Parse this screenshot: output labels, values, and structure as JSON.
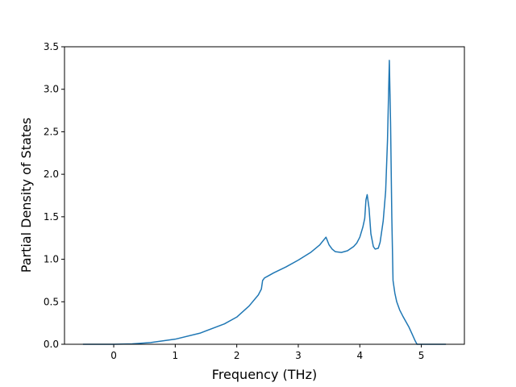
{
  "chart_data": {
    "type": "line",
    "title": "",
    "xlabel": "Frequency (THz)",
    "ylabel": "Partial Density of States",
    "xlim": [
      -0.8,
      5.7
    ],
    "ylim": [
      0,
      3.5
    ],
    "xticks": [
      0,
      1,
      2,
      3,
      4,
      5
    ],
    "yticks": [
      0.0,
      0.5,
      1.0,
      1.5,
      2.0,
      2.5,
      3.0,
      3.5
    ],
    "xtick_labels": [
      "0",
      "1",
      "2",
      "3",
      "4",
      "5"
    ],
    "ytick_labels": [
      "0.0",
      "0.5",
      "1.0",
      "1.5",
      "2.0",
      "2.5",
      "3.0",
      "3.5"
    ],
    "grid": false,
    "legend": false,
    "line_color": "#1f77b4",
    "series": [
      {
        "x": [
          -0.5,
          -0.2,
          0.0,
          0.3,
          0.6,
          1.0,
          1.4,
          1.8,
          2.0,
          2.2,
          2.35,
          2.4,
          2.42,
          2.45,
          2.5,
          2.6,
          2.8,
          3.0,
          3.2,
          3.35,
          3.45,
          3.5,
          3.55,
          3.6,
          3.7,
          3.8,
          3.9,
          3.95,
          4.0,
          4.05,
          4.08,
          4.1,
          4.12,
          4.15,
          4.18,
          4.22,
          4.25,
          4.3,
          4.33,
          4.38,
          4.42,
          4.45,
          4.48,
          4.5,
          4.52,
          4.54,
          4.57,
          4.6,
          4.65,
          4.7,
          4.8,
          4.85,
          4.9,
          4.93,
          4.96,
          5.0,
          5.2,
          5.4
        ],
        "y": [
          0.0,
          0.0,
          0.0,
          0.005,
          0.02,
          0.06,
          0.13,
          0.24,
          0.32,
          0.45,
          0.58,
          0.65,
          0.75,
          0.78,
          0.8,
          0.84,
          0.91,
          0.99,
          1.08,
          1.17,
          1.26,
          1.17,
          1.12,
          1.09,
          1.08,
          1.1,
          1.15,
          1.19,
          1.26,
          1.38,
          1.48,
          1.7,
          1.76,
          1.6,
          1.3,
          1.15,
          1.12,
          1.13,
          1.2,
          1.45,
          1.8,
          2.4,
          3.34,
          2.6,
          1.5,
          0.75,
          0.6,
          0.5,
          0.4,
          0.33,
          0.2,
          0.12,
          0.04,
          0.0,
          0.0,
          0.0,
          0.0,
          0.0
        ]
      }
    ]
  }
}
